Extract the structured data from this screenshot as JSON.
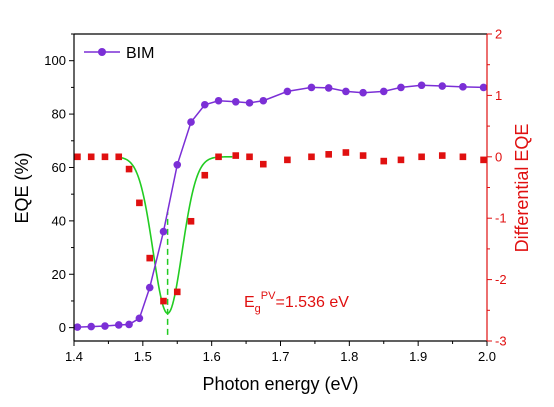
{
  "chart_data": {
    "type": "scatter",
    "xlabel": "Photon energy (eV)",
    "ylabel_left": "EQE (%)",
    "ylabel_right": "Differential EQE",
    "xlim": [
      1.4,
      2.0
    ],
    "ylim_left": [
      -5,
      110
    ],
    "ylim_right": [
      -3,
      2
    ],
    "x_ticks": [
      "1.4",
      "1.5",
      "1.6",
      "1.7",
      "1.8",
      "1.9",
      "2.0"
    ],
    "y_left_ticks": [
      "0",
      "20",
      "40",
      "60",
      "80",
      "100"
    ],
    "y_right_ticks": [
      "-3",
      "-2",
      "-1",
      "0",
      "1",
      "2"
    ],
    "legend": {
      "position": "top-left",
      "label": "BIM"
    },
    "annotation": {
      "main": "E",
      "sub": "g",
      "sup": "PV",
      "rest": "=1.536 eV",
      "x_value": 1.536
    },
    "colors": {
      "eqe": "#7b2fd6",
      "diff": "#e01010",
      "fit": "#22cc22",
      "right_axis": "#e01010",
      "axis": "#000000"
    },
    "series": [
      {
        "name": "BIM",
        "axis": "left",
        "x": [
          1.405,
          1.425,
          1.445,
          1.465,
          1.48,
          1.495,
          1.51,
          1.53,
          1.55,
          1.57,
          1.59,
          1.61,
          1.635,
          1.655,
          1.675,
          1.71,
          1.745,
          1.77,
          1.795,
          1.82,
          1.85,
          1.875,
          1.905,
          1.935,
          1.965,
          1.995
        ],
        "y": [
          0.2,
          0.4,
          0.6,
          1.0,
          1.2,
          3.5,
          15.0,
          36.0,
          61.0,
          77.0,
          83.5,
          85.0,
          84.6,
          84.2,
          85.0,
          88.5,
          90.0,
          89.8,
          88.5,
          88.0,
          88.5,
          90.0,
          90.8,
          90.5,
          90.2,
          90.0
        ]
      },
      {
        "axis": "right",
        "x": [
          1.405,
          1.425,
          1.445,
          1.465,
          1.48,
          1.495,
          1.51,
          1.53,
          1.55,
          1.57,
          1.59,
          1.61,
          1.635,
          1.655,
          1.675,
          1.71,
          1.745,
          1.77,
          1.795,
          1.82,
          1.85,
          1.875,
          1.905,
          1.935,
          1.965,
          1.995
        ],
        "y": [
          0.0,
          0.0,
          0.0,
          0.0,
          -0.2,
          -0.75,
          -1.65,
          -2.35,
          -2.2,
          -1.05,
          -0.3,
          0.0,
          0.02,
          0.0,
          -0.12,
          -0.05,
          0.0,
          0.04,
          0.07,
          0.02,
          -0.07,
          -0.05,
          0.0,
          0.02,
          0.0,
          -0.05
        ]
      }
    ],
    "fit": {
      "axis": "right",
      "center": 1.536,
      "amplitude": -2.55,
      "sigma": 0.021,
      "xmin": 1.465,
      "xmax": 1.63
    }
  }
}
